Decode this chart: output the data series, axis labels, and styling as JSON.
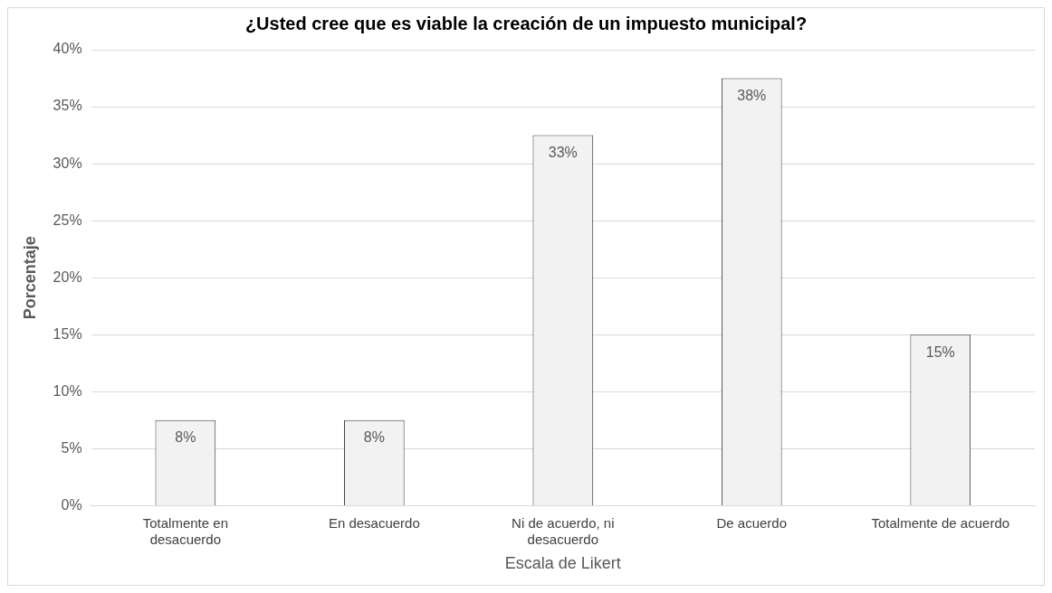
{
  "chart_data": {
    "type": "bar",
    "title": "¿Usted cree que es viable la creación de un impuesto municipal?",
    "xlabel": "Escala de Likert",
    "ylabel": "Porcentaje",
    "categories": [
      "Totalmente en desacuerdo",
      "En desacuerdo",
      "Ni de acuerdo, ni desacuerdo",
      "De acuerdo",
      "Totalmente de acuerdo"
    ],
    "values": [
      7.5,
      7.5,
      32.5,
      37.5,
      15
    ],
    "value_labels": [
      "8%",
      "8%",
      "33%",
      "38%",
      "15%"
    ],
    "color": "#f2f2f2",
    "ylim": [
      0,
      40
    ],
    "yticks": [
      {
        "value": 0,
        "label": "0%"
      },
      {
        "value": 5,
        "label": "5%"
      },
      {
        "value": 10,
        "label": "10%"
      },
      {
        "value": 15,
        "label": "15%"
      },
      {
        "value": 20,
        "label": "20%"
      },
      {
        "value": 25,
        "label": "25%"
      },
      {
        "value": 30,
        "label": "30%"
      },
      {
        "value": 35,
        "label": "35%"
      },
      {
        "value": 40,
        "label": "40%"
      }
    ],
    "grid": "y",
    "legend": false
  }
}
